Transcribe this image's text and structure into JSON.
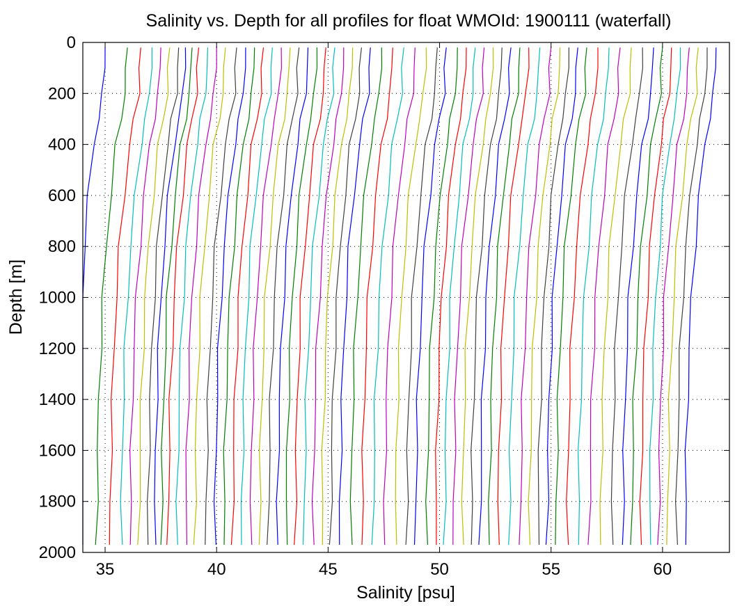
{
  "chart_data": {
    "type": "line",
    "title": "Salinity vs. Depth for all profiles for float WMOId: 1900111 (waterfall)",
    "xlabel": "Salinity [psu]",
    "ylabel": "Depth [m]",
    "xlim": [
      34,
      63
    ],
    "ylim": [
      0,
      2000
    ],
    "y_reversed": true,
    "grid": true,
    "x_ticks": [
      35,
      40,
      45,
      50,
      55,
      60
    ],
    "y_ticks": [
      0,
      200,
      400,
      600,
      800,
      1000,
      1200,
      1400,
      1600,
      1800,
      2000
    ],
    "color_cycle": [
      "#0000ff",
      "#008000",
      "#ff0000",
      "#00bfbf",
      "#bf00bf",
      "#bfbf00",
      "#404040"
    ],
    "depths": [
      20,
      100,
      200,
      300,
      400,
      600,
      800,
      1000,
      1200,
      1400,
      1600,
      1800,
      1970
    ],
    "profile_surface_salinity": [
      35.0,
      36.0,
      36.6,
      37.1,
      37.5,
      37.9,
      38.3,
      38.6,
      38.9,
      39.2,
      39.6,
      40.0,
      40.4,
      40.9,
      41.3,
      41.7,
      42.1,
      42.5,
      42.9,
      43.3,
      43.7,
      44.1,
      44.5,
      44.9,
      45.3,
      45.7,
      46.1,
      46.5,
      46.9,
      47.4,
      47.9,
      48.4,
      48.9,
      49.4,
      49.9,
      50.3,
      50.8,
      51.2,
      51.6,
      52.0,
      52.4,
      52.8,
      53.2,
      53.6,
      54.0,
      54.5,
      55.0,
      55.4,
      55.8,
      56.2,
      56.6,
      57.1,
      57.6,
      58.1,
      58.6,
      59.1,
      59.6,
      60.0,
      60.4,
      60.8,
      61.2,
      61.6,
      62.0,
      62.4
    ],
    "profile_shape": [
      0.0,
      -0.05,
      -0.1,
      -0.3,
      -0.5,
      -0.75,
      -0.95,
      -1.1,
      -1.2,
      -1.28,
      -1.33,
      -1.36,
      -1.38
    ]
  }
}
